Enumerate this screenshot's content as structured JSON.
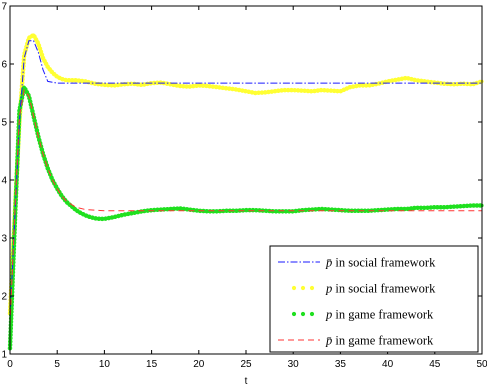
{
  "chart_data": {
    "type": "line",
    "title": "",
    "xlabel": "t",
    "ylabel": "",
    "xlim": [
      0,
      50
    ],
    "ylim": [
      1,
      7
    ],
    "xticks": [
      0,
      5,
      10,
      15,
      20,
      25,
      30,
      35,
      40,
      45,
      50
    ],
    "yticks": [
      1,
      2,
      3,
      4,
      5,
      6,
      7
    ],
    "grid": false,
    "legend_position": "bottom-right",
    "series": [
      {
        "name": "p̄ in social framework",
        "legend_symbol": "p̄",
        "legend_suffix": " in social framework",
        "color": "#1a1aff",
        "style": "dashdot",
        "x": [
          0,
          0.5,
          1,
          1.5,
          2,
          2.5,
          3,
          3.5,
          4,
          5,
          50
        ],
        "y": [
          1.6,
          3.3,
          5.0,
          6.1,
          6.4,
          6.4,
          6.2,
          5.9,
          5.7,
          5.67,
          5.67
        ]
      },
      {
        "name": "p in social framework",
        "legend_symbol": "p",
        "legend_suffix": " in social framework",
        "color": "#ffff33",
        "style": "dots",
        "x": [
          0,
          0.5,
          1,
          1.5,
          2,
          2.5,
          3,
          3.5,
          4,
          4.5,
          5,
          5.5,
          6,
          7,
          8,
          9,
          10,
          11,
          12,
          13,
          14,
          15,
          16,
          17,
          18,
          19,
          20,
          21,
          22,
          23,
          24,
          25,
          26,
          27,
          28,
          29,
          30,
          31,
          32,
          33,
          34,
          35,
          36,
          37,
          38,
          39,
          40,
          41,
          42,
          43,
          44,
          45,
          46,
          47,
          48,
          49,
          50
        ],
        "y": [
          1.7,
          3.4,
          5.0,
          6.15,
          6.45,
          6.5,
          6.35,
          6.1,
          5.95,
          5.85,
          5.78,
          5.74,
          5.72,
          5.72,
          5.7,
          5.66,
          5.64,
          5.63,
          5.65,
          5.66,
          5.64,
          5.67,
          5.68,
          5.65,
          5.62,
          5.61,
          5.63,
          5.62,
          5.6,
          5.58,
          5.56,
          5.53,
          5.5,
          5.51,
          5.53,
          5.55,
          5.55,
          5.54,
          5.53,
          5.55,
          5.54,
          5.53,
          5.6,
          5.63,
          5.63,
          5.66,
          5.7,
          5.73,
          5.76,
          5.72,
          5.7,
          5.68,
          5.66,
          5.65,
          5.66,
          5.65,
          5.7
        ]
      },
      {
        "name": "p in game framework",
        "legend_symbol": "p",
        "legend_suffix": " in game framework",
        "color": "#1fe01f",
        "style": "dots",
        "x": [
          0,
          0.5,
          1,
          1.5,
          2,
          2.5,
          3,
          3.5,
          4,
          4.5,
          5,
          5.5,
          6,
          6.5,
          7,
          7.5,
          8,
          8.5,
          9,
          9.5,
          10,
          11,
          12,
          13,
          14,
          15,
          16,
          17,
          18,
          19,
          20,
          21,
          22,
          23,
          24,
          25,
          26,
          27,
          28,
          29,
          30,
          31,
          32,
          33,
          34,
          35,
          36,
          37,
          38,
          39,
          40,
          41,
          42,
          43,
          44,
          45,
          46,
          47,
          48,
          49,
          50
        ],
        "y": [
          1.1,
          3.2,
          5.2,
          5.6,
          5.45,
          5.1,
          4.75,
          4.45,
          4.2,
          4.0,
          3.85,
          3.72,
          3.62,
          3.55,
          3.48,
          3.43,
          3.39,
          3.36,
          3.34,
          3.33,
          3.33,
          3.36,
          3.4,
          3.43,
          3.46,
          3.48,
          3.49,
          3.5,
          3.51,
          3.49,
          3.47,
          3.46,
          3.46,
          3.47,
          3.47,
          3.48,
          3.48,
          3.47,
          3.46,
          3.46,
          3.46,
          3.48,
          3.49,
          3.5,
          3.49,
          3.48,
          3.47,
          3.47,
          3.47,
          3.48,
          3.49,
          3.5,
          3.5,
          3.52,
          3.52,
          3.53,
          3.53,
          3.54,
          3.55,
          3.56,
          3.56
        ]
      },
      {
        "name": "p̄ in game framework",
        "legend_symbol": "p̄",
        "legend_suffix": " in game framework",
        "color": "#ff3333",
        "style": "dashed",
        "x": [
          0,
          0.5,
          1,
          1.5,
          2,
          2.5,
          3,
          3.5,
          4,
          4.5,
          5,
          5.5,
          6,
          7,
          8,
          9,
          10,
          11,
          12,
          50
        ],
        "y": [
          1.5,
          3.4,
          5.1,
          5.55,
          5.45,
          5.1,
          4.75,
          4.45,
          4.2,
          4.0,
          3.85,
          3.72,
          3.63,
          3.53,
          3.49,
          3.48,
          3.47,
          3.47,
          3.47,
          3.47
        ]
      }
    ]
  }
}
